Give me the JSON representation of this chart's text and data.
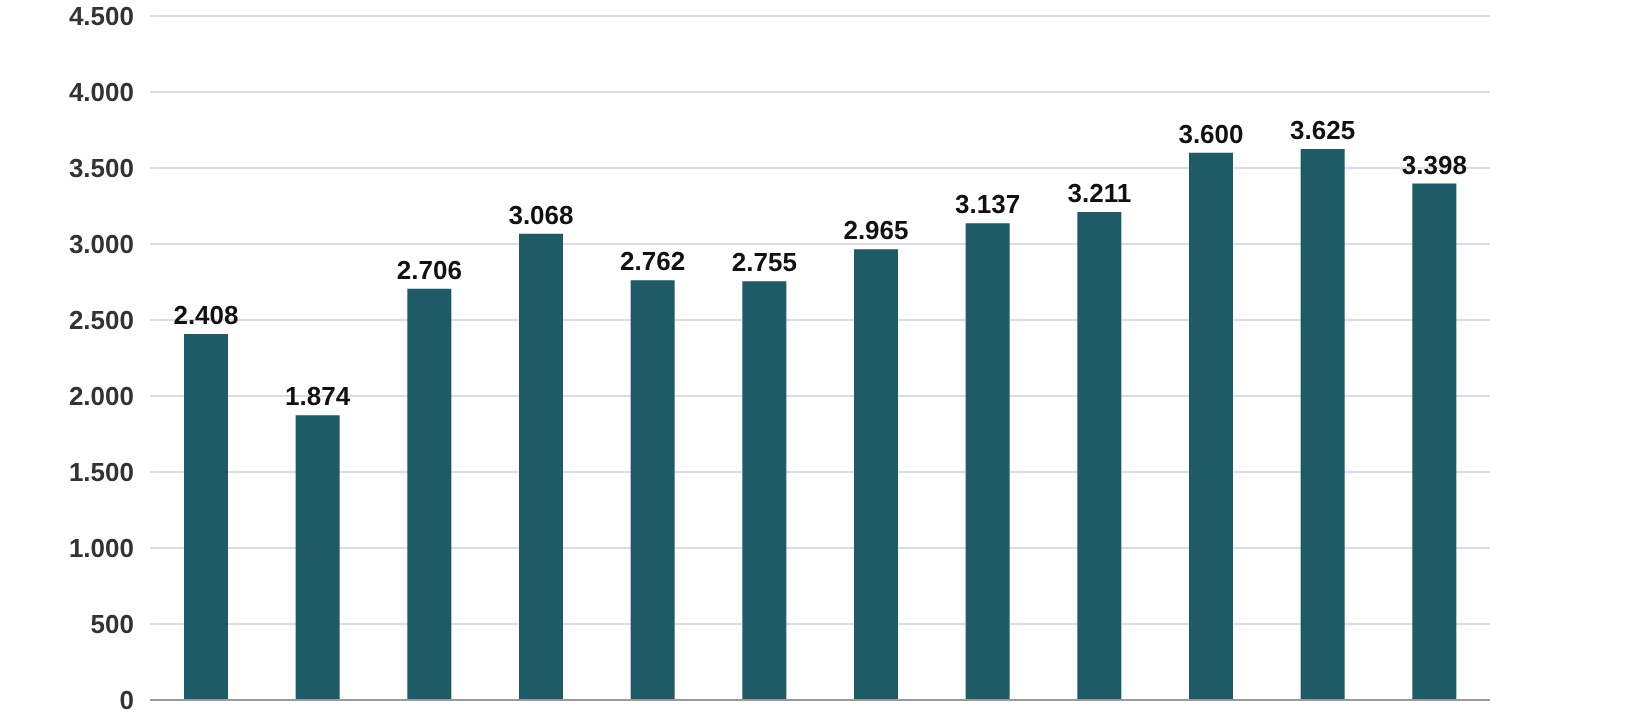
{
  "chart_data": {
    "type": "bar",
    "categories": [
      null,
      null,
      null,
      null,
      null,
      null,
      null,
      null,
      null,
      null,
      null,
      null
    ],
    "values": [
      2408,
      1874,
      2706,
      3068,
      2762,
      2755,
      2965,
      3137,
      3211,
      3600,
      3625,
      3398
    ],
    "value_labels": [
      "2.408",
      "1.874",
      "2.706",
      "3.068",
      "2.762",
      "2.755",
      "2.965",
      "3.137",
      "3.211",
      "3.600",
      "3.625",
      "3.398"
    ],
    "color": "#1f5b66",
    "ylim": [
      0,
      4500
    ],
    "yticks": [
      {
        "value": 0,
        "label": "0"
      },
      {
        "value": 500,
        "label": "500"
      },
      {
        "value": 1000,
        "label": "1.000"
      },
      {
        "value": 1500,
        "label": "1.500"
      },
      {
        "value": 2000,
        "label": "2.000"
      },
      {
        "value": 2500,
        "label": "2.500"
      },
      {
        "value": 3000,
        "label": "3.000"
      },
      {
        "value": 3500,
        "label": "3.500"
      },
      {
        "value": 4000,
        "label": "4.000"
      },
      {
        "value": 4500,
        "label": "4.500"
      }
    ],
    "grid": "y",
    "legend": false
  }
}
